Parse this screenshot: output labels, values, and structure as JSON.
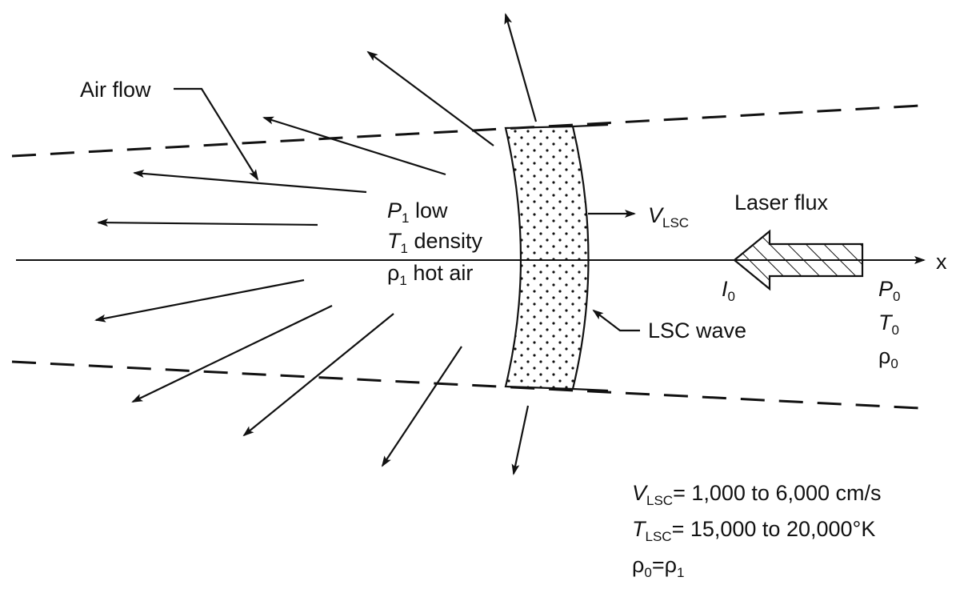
{
  "labels": {
    "air_flow": "Air flow",
    "p1": "P",
    "p1_sub": "1",
    "p1_text": " low",
    "t1": "T",
    "t1_sub": "1",
    "t1_text": " density",
    "rho1": "ρ",
    "rho1_sub": "1",
    "rho1_text": " hot air",
    "v_lsc": "V",
    "v_lsc_sub": "LSC",
    "laser_flux": "Laser flux",
    "x_axis": "x",
    "i0": "I",
    "i0_sub": "0",
    "p0": "P",
    "p0_sub": "0",
    "t0": "T",
    "t0_sub": "0",
    "rho0": "ρ",
    "rho0_sub": "0",
    "lsc_wave": "LSC wave"
  },
  "equations": {
    "v_sym": "V",
    "v_sub": "LSC",
    "v_text": "= 1,000 to 6,000 cm/s",
    "t_sym": "T",
    "t_sub": "LSC",
    "t_text": "= 15,000 to 20,000°K",
    "rho_a": "ρ",
    "rho_a_sub": "0",
    "rho_eq": "=ρ",
    "rho_b_sub": "1"
  }
}
